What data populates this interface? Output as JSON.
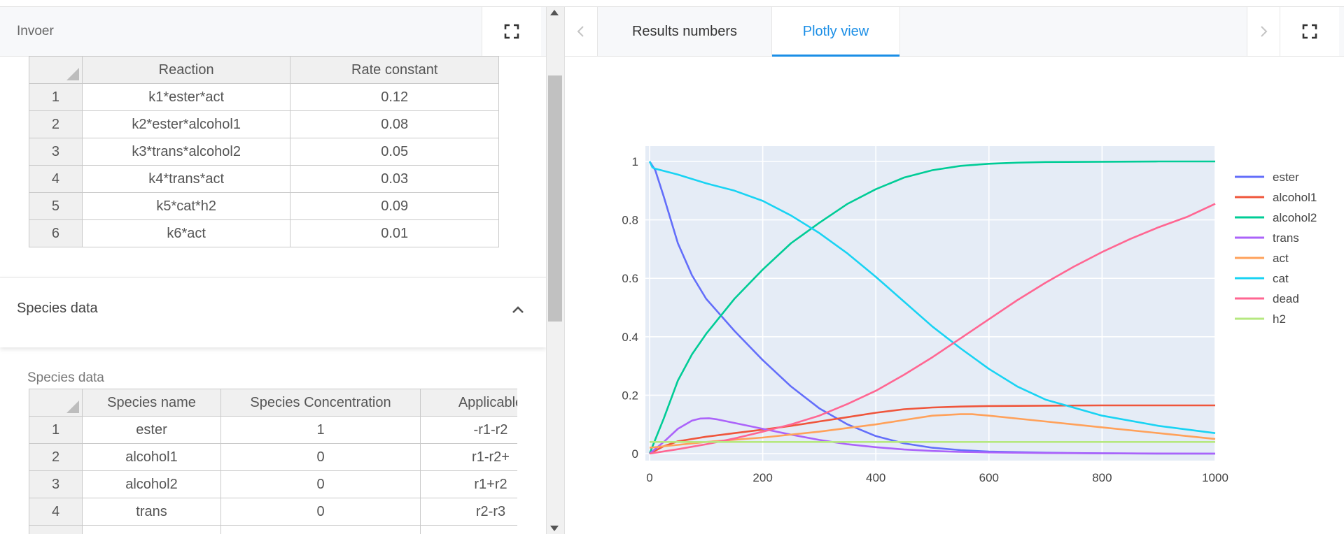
{
  "left_panel": {
    "title": "Invoer",
    "reactions_table": {
      "headers": [
        "Reaction",
        "Rate constant"
      ],
      "rows": [
        {
          "index": "1",
          "reaction": "k1*ester*act",
          "rate": "0.12"
        },
        {
          "index": "2",
          "reaction": "k2*ester*alcohol1",
          "rate": "0.08"
        },
        {
          "index": "3",
          "reaction": "k3*trans*alcohol2",
          "rate": "0.05"
        },
        {
          "index": "4",
          "reaction": "k4*trans*act",
          "rate": "0.03"
        },
        {
          "index": "5",
          "reaction": "k5*cat*h2",
          "rate": "0.09"
        },
        {
          "index": "6",
          "reaction": "k6*act",
          "rate": "0.01"
        }
      ]
    },
    "species_section": {
      "title": "Species data",
      "caption": "Species data",
      "headers": [
        "Species name",
        "Species Concentration",
        "Applicable"
      ],
      "rows": [
        {
          "index": "1",
          "name": "ester",
          "concentration": "1",
          "applicable": "-r1-r2"
        },
        {
          "index": "2",
          "name": "alcohol1",
          "concentration": "0",
          "applicable": "r1-r2+"
        },
        {
          "index": "3",
          "name": "alcohol2",
          "concentration": "0",
          "applicable": "r1+r2"
        },
        {
          "index": "4",
          "name": "trans",
          "concentration": "0",
          "applicable": "r2-r3"
        }
      ]
    }
  },
  "right_panel": {
    "tabs": [
      {
        "label": "Results numbers",
        "active": false
      },
      {
        "label": "Plotly view",
        "active": true
      }
    ],
    "accent_color": "#1a8ee6"
  },
  "icons": {
    "expand": "fullscreen-icon",
    "collapse": "chevron-up-icon",
    "prev": "chevron-left-icon",
    "next": "chevron-right-icon"
  },
  "chart_data": {
    "type": "line",
    "title": "",
    "xlabel": "",
    "ylabel": "",
    "xlim": [
      0,
      1000
    ],
    "ylim": [
      0,
      1
    ],
    "x_ticks": [
      0,
      200,
      400,
      600,
      800,
      1000
    ],
    "x_tick_labels": [
      "0",
      "200",
      "400",
      "600",
      "800",
      "1000"
    ],
    "y_ticks": [
      0,
      0.2,
      0.4,
      0.6,
      0.8,
      1
    ],
    "y_tick_labels": [
      "0",
      "0.2",
      "0.4",
      "0.6",
      "0.8",
      "1"
    ],
    "grid": true,
    "legend_position": "right",
    "plot_background": "#e5ecf6",
    "series": [
      {
        "name": "ester",
        "color": "#636efa",
        "x": [
          0,
          10,
          25,
          50,
          75,
          100,
          150,
          200,
          250,
          300,
          350,
          400,
          450,
          500,
          550,
          600,
          700,
          800,
          900,
          1000
        ],
        "y": [
          1,
          0.97,
          0.88,
          0.72,
          0.61,
          0.53,
          0.42,
          0.32,
          0.23,
          0.155,
          0.1,
          0.06,
          0.035,
          0.02,
          0.012,
          0.007,
          0.003,
          0.001,
          0,
          0
        ]
      },
      {
        "name": "alcohol1",
        "color": "#ef553b",
        "x": [
          0,
          25,
          50,
          100,
          150,
          200,
          250,
          300,
          350,
          400,
          450,
          500,
          550,
          600,
          700,
          800,
          900,
          1000
        ],
        "y": [
          0,
          0.025,
          0.042,
          0.058,
          0.07,
          0.082,
          0.095,
          0.11,
          0.125,
          0.14,
          0.152,
          0.158,
          0.161,
          0.163,
          0.164,
          0.165,
          0.165,
          0.165
        ]
      },
      {
        "name": "alcohol2",
        "color": "#00cc96",
        "x": [
          0,
          25,
          50,
          75,
          100,
          150,
          200,
          250,
          300,
          350,
          400,
          450,
          500,
          550,
          600,
          650,
          700,
          800,
          900,
          1000
        ],
        "y": [
          0,
          0.12,
          0.25,
          0.34,
          0.41,
          0.53,
          0.63,
          0.72,
          0.79,
          0.855,
          0.905,
          0.945,
          0.97,
          0.985,
          0.992,
          0.996,
          0.998,
          0.999,
          1,
          1
        ]
      },
      {
        "name": "trans",
        "color": "#ab63fa",
        "x": [
          0,
          25,
          50,
          75,
          90,
          105,
          120,
          150,
          200,
          250,
          300,
          350,
          400,
          450,
          500,
          550,
          600,
          700,
          800,
          1000
        ],
        "y": [
          0,
          0.04,
          0.085,
          0.113,
          0.12,
          0.121,
          0.117,
          0.105,
          0.085,
          0.065,
          0.047,
          0.032,
          0.022,
          0.014,
          0.009,
          0.006,
          0.004,
          0.002,
          0.001,
          0
        ]
      },
      {
        "name": "act",
        "color": "#ffa15a",
        "x": [
          0,
          25,
          50,
          100,
          200,
          300,
          400,
          450,
          500,
          550,
          570,
          600,
          700,
          800,
          900,
          1000
        ],
        "y": [
          0.02,
          0.025,
          0.03,
          0.04,
          0.055,
          0.075,
          0.1,
          0.115,
          0.13,
          0.135,
          0.135,
          0.13,
          0.11,
          0.09,
          0.07,
          0.05
        ]
      },
      {
        "name": "cat",
        "color": "#19d3f3",
        "x": [
          0,
          5,
          10,
          50,
          100,
          150,
          200,
          250,
          300,
          350,
          400,
          450,
          500,
          550,
          600,
          650,
          700,
          800,
          900,
          1000
        ],
        "y": [
          1,
          0.98,
          0.975,
          0.955,
          0.925,
          0.9,
          0.865,
          0.815,
          0.755,
          0.685,
          0.605,
          0.52,
          0.435,
          0.36,
          0.29,
          0.23,
          0.185,
          0.13,
          0.095,
          0.07
        ]
      },
      {
        "name": "dead",
        "color": "#ff6692",
        "x": [
          0,
          50,
          100,
          150,
          200,
          250,
          300,
          350,
          400,
          450,
          500,
          550,
          600,
          650,
          700,
          750,
          800,
          850,
          900,
          950,
          1000
        ],
        "y": [
          0,
          0.015,
          0.032,
          0.052,
          0.075,
          0.1,
          0.13,
          0.17,
          0.215,
          0.27,
          0.33,
          0.395,
          0.46,
          0.525,
          0.585,
          0.64,
          0.69,
          0.735,
          0.775,
          0.81,
          0.855
        ]
      },
      {
        "name": "h2",
        "color": "#b6e880",
        "x": [
          0,
          1000
        ],
        "y": [
          0.04,
          0.04
        ]
      }
    ]
  }
}
